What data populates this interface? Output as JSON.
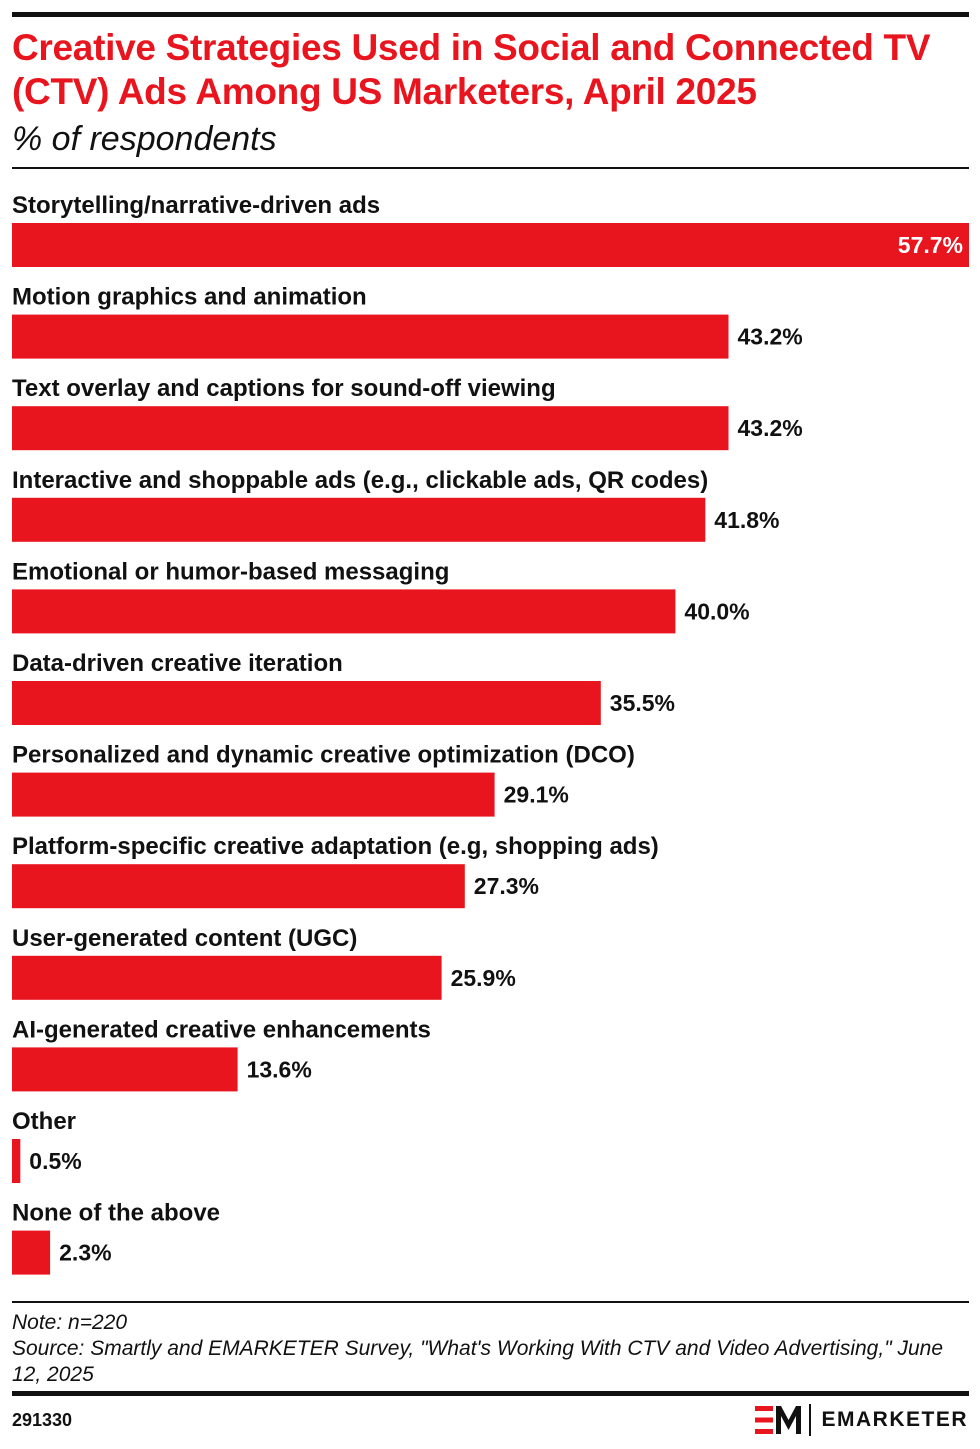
{
  "header": {
    "title": "Creative Strategies Used in Social and Connected TV (CTV) Ads Among US Marketers, April 2025",
    "subtitle": "% of respondents"
  },
  "chart_data": {
    "type": "bar",
    "orientation": "horizontal",
    "title": "Creative Strategies Used in Social and Connected TV (CTV) Ads Among US Marketers, April 2025",
    "subtitle": "% of respondents",
    "categories": [
      "Storytelling/narrative-driven ads",
      "Motion graphics and animation",
      "Text overlay and captions for sound-off viewing",
      "Interactive and shoppable ads (e.g., clickable ads, QR codes)",
      "Emotional or humor-based messaging",
      "Data-driven creative iteration",
      "Personalized and dynamic creative optimization (DCO)",
      "Platform-specific creative adaptation (e.g, shopping ads)",
      "User-generated content (UGC)",
      "AI-generated creative enhancements",
      "Other",
      "None of the above"
    ],
    "values": [
      57.7,
      43.2,
      43.2,
      41.8,
      40.0,
      35.5,
      29.1,
      27.3,
      25.9,
      13.6,
      0.5,
      2.3
    ],
    "value_labels": [
      "57.7%",
      "43.2%",
      "43.2%",
      "41.8%",
      "40.0%",
      "35.5%",
      "29.1%",
      "27.3%",
      "25.9%",
      "13.6%",
      "0.5%",
      "2.3%"
    ],
    "unit": "%",
    "xlim": [
      0,
      57.7
    ],
    "grid": false,
    "legend": "none",
    "bar_color": "#e8141e"
  },
  "footer": {
    "note": "Note: n=220",
    "source": "Source: Smartly and EMARKETER Survey, \"What's Working With CTV and Video Advertising,\" June 12, 2025",
    "chart_id": "291330",
    "brand_name": "EMARKETER"
  },
  "colors": {
    "accent": "#e8141e",
    "text": "#111111",
    "background": "#ffffff"
  }
}
